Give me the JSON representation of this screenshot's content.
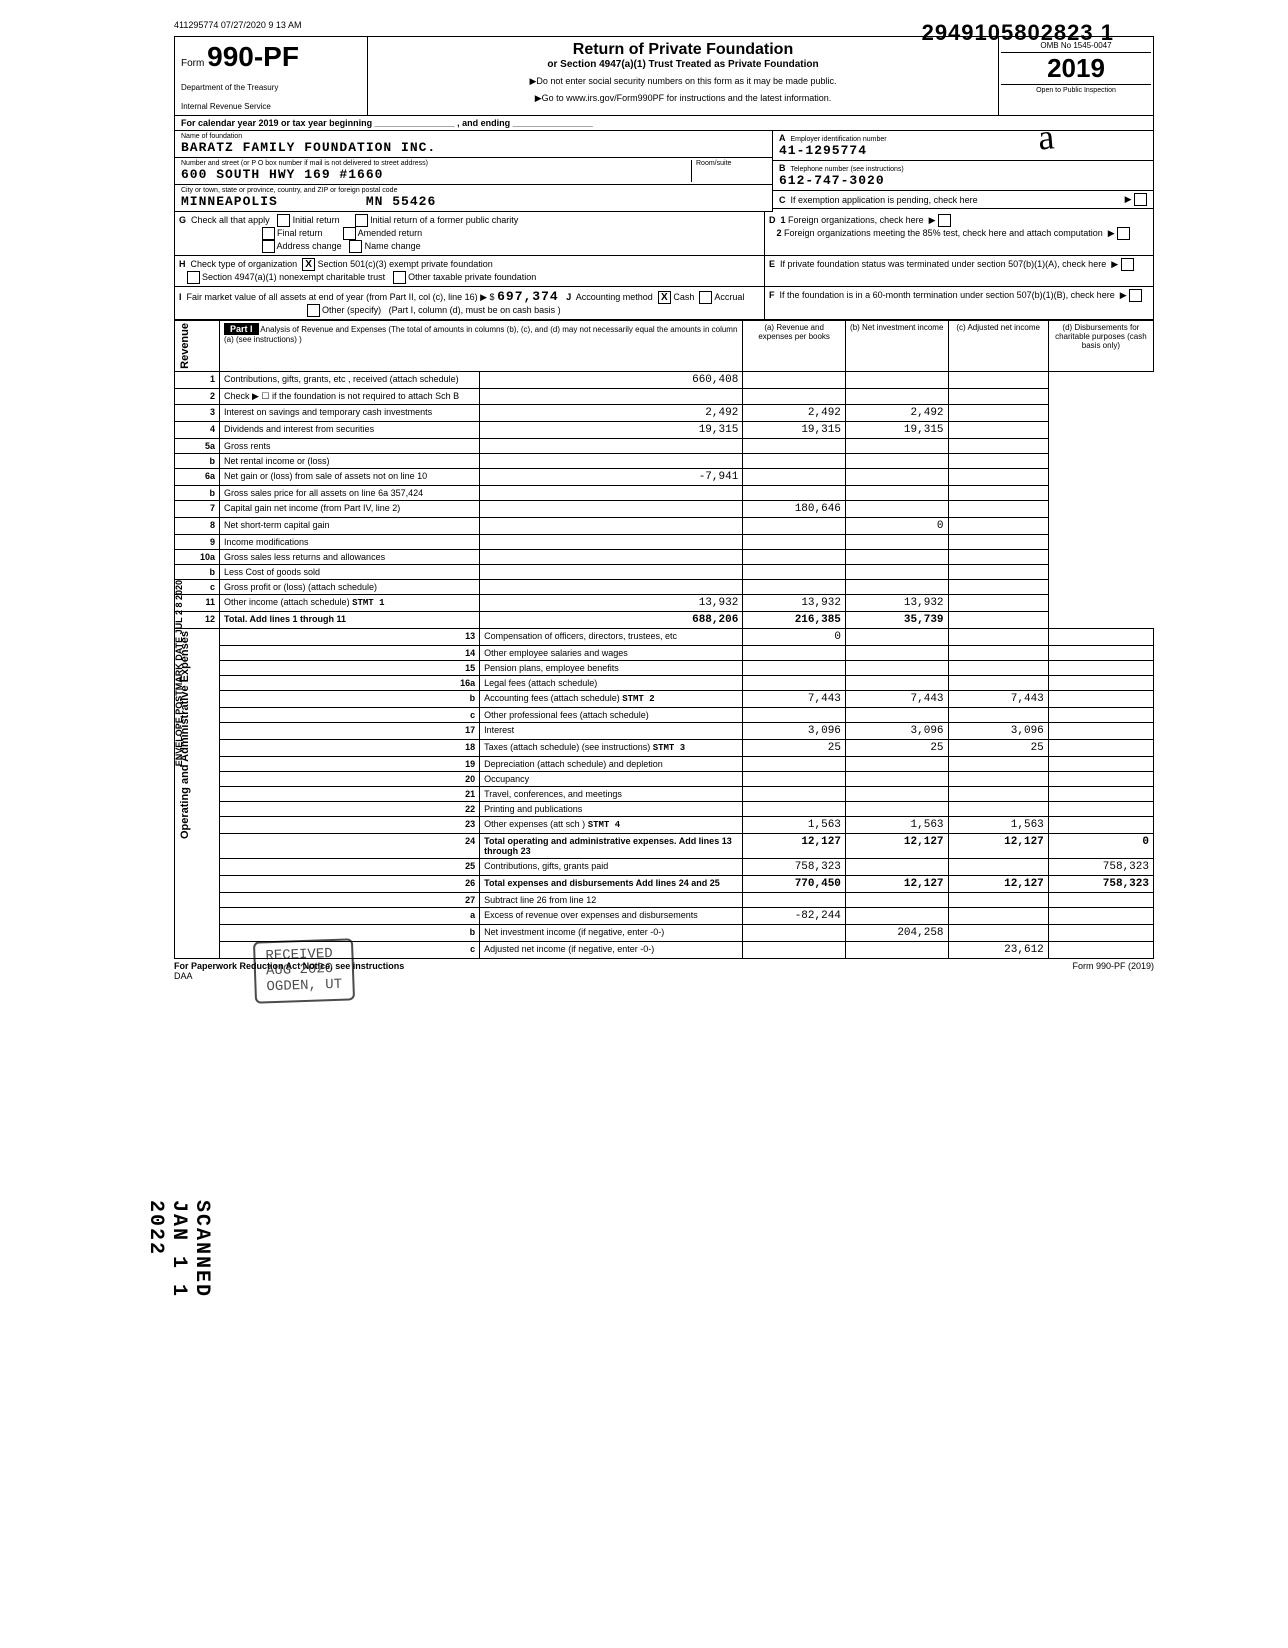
{
  "meta": {
    "top_stamp": "411295774 07/27/2020 9 13 AM",
    "doc_number": "2949105802823 1",
    "side_scanned": "SCANNED JAN 1 1 2022",
    "side_postmark": "ENVELOPE POSTMARK DATE JUL 2 8 2020"
  },
  "header": {
    "form_word": "Form",
    "form_number": "990-PF",
    "dept1": "Department of the Treasury",
    "dept2": "Internal Revenue Service",
    "title": "Return of Private Foundation",
    "subtitle": "or Section 4947(a)(1) Trust Treated as Private Foundation",
    "note1": "▶Do not enter social security numbers on this form as it may be made public.",
    "note2": "▶Go to www.irs.gov/Form990PF for instructions and the latest information.",
    "omb": "OMB No 1545-0047",
    "year": "2019",
    "inspection": "Open to Public Inspection",
    "calendar": "For calendar year 2019 or tax year beginning ________________ , and ending ________________"
  },
  "identity": {
    "name_label": "Name of foundation",
    "name": "BARATZ FAMILY FOUNDATION INC.",
    "addr_label": "Number and street (or P O box number if mail is not delivered to street address)",
    "room_label": "Room/suite",
    "address": "600 SOUTH HWY 169 #1660",
    "city_label": "City or town, state or province, country, and ZIP or foreign postal code",
    "city": "MINNEAPOLIS",
    "state_zip": "MN   55426",
    "ein_letter": "A",
    "ein_label": "Employer identification number",
    "ein": "41-1295774",
    "phone_letter": "B",
    "phone_label": "Telephone number (see instructions)",
    "phone": "612-747-3020",
    "c_label": "If exemption application is pending, check here",
    "d1_label": "Foreign organizations, check here",
    "d2_label": "Foreign organizations meeting the 85% test, check here and attach computation",
    "e_label": "If private foundation status was terminated under section 507(b)(1)(A), check here",
    "f_label": "If the foundation is in a 60-month termination under section 507(b)(1)(B), check here"
  },
  "g": {
    "label": "Check all that apply",
    "opts": [
      "Initial return",
      "Final return",
      "Address change",
      "Initial return of a former public charity",
      "Amended return",
      "Name change"
    ]
  },
  "h": {
    "label": "Check type of organization",
    "opt1": "Section 501(c)(3) exempt private foundation",
    "opt2": "Section 4947(a)(1) nonexempt charitable trust",
    "opt3": "Other taxable private foundation",
    "checked": "X"
  },
  "i": {
    "label": "Fair market value of all assets at end of year (from Part II, col (c), line 16) ▶  $",
    "value": "697,374",
    "j_label": "Accounting method",
    "cash": "Cash",
    "accrual": "Accrual",
    "other": "Other (specify)",
    "cash_x": "X",
    "note": "(Part I, column (d), must be on cash basis )"
  },
  "part1": {
    "label": "Part I",
    "desc": "Analysis of Revenue and Expenses (The total of amounts in columns (b), (c), and (d) may not necessarily equal the amounts in column (a) (see instructions) )",
    "col_a": "(a) Revenue and expenses per books",
    "col_b": "(b) Net investment income",
    "col_c": "(c) Adjusted net income",
    "col_d": "(d) Disbursements for charitable purposes (cash basis only)"
  },
  "side_labels": {
    "revenue": "Revenue",
    "expenses": "Operating and Administrative Expenses"
  },
  "lines": [
    {
      "n": "1",
      "d": "Contributions, gifts, grants, etc , received (attach schedule)",
      "a": "660,408",
      "b": "",
      "c": "",
      "dd": ""
    },
    {
      "n": "2",
      "d": "Check ▶  ☐  if the foundation is not required to attach Sch B",
      "a": "",
      "b": "",
      "c": "",
      "dd": ""
    },
    {
      "n": "3",
      "d": "Interest on savings and temporary cash investments",
      "a": "2,492",
      "b": "2,492",
      "c": "2,492",
      "dd": ""
    },
    {
      "n": "4",
      "d": "Dividends and interest from securities",
      "a": "19,315",
      "b": "19,315",
      "c": "19,315",
      "dd": ""
    },
    {
      "n": "5a",
      "d": "Gross rents",
      "a": "",
      "b": "",
      "c": "",
      "dd": ""
    },
    {
      "n": "b",
      "d": "Net rental income or (loss)",
      "a": "",
      "b": "",
      "c": "",
      "dd": ""
    },
    {
      "n": "6a",
      "d": "Net gain or (loss) from sale of assets not on line 10",
      "a": "-7,941",
      "b": "",
      "c": "",
      "dd": ""
    },
    {
      "n": "b",
      "d": "Gross sales price for all assets on line 6a           357,424",
      "a": "",
      "b": "",
      "c": "",
      "dd": ""
    },
    {
      "n": "7",
      "d": "Capital gain net income (from Part IV, line 2)",
      "a": "",
      "b": "180,646",
      "c": "",
      "dd": ""
    },
    {
      "n": "8",
      "d": "Net short-term capital gain",
      "a": "",
      "b": "",
      "c": "0",
      "dd": ""
    },
    {
      "n": "9",
      "d": "Income modifications",
      "a": "",
      "b": "",
      "c": "",
      "dd": ""
    },
    {
      "n": "10a",
      "d": "Gross sales less returns and allowances",
      "a": "",
      "b": "",
      "c": "",
      "dd": ""
    },
    {
      "n": "b",
      "d": "Less Cost of goods sold",
      "a": "",
      "b": "",
      "c": "",
      "dd": ""
    },
    {
      "n": "c",
      "d": "Gross profit or (loss) (attach schedule)",
      "a": "",
      "b": "",
      "c": "",
      "dd": ""
    },
    {
      "n": "11",
      "d": "Other income (attach schedule)        STMT 1",
      "a": "13,932",
      "b": "13,932",
      "c": "13,932",
      "dd": ""
    },
    {
      "n": "12",
      "d": "Total. Add lines 1 through 11",
      "a": "688,206",
      "b": "216,385",
      "c": "35,739",
      "dd": ""
    },
    {
      "n": "13",
      "d": "Compensation of officers, directors, trustees, etc",
      "a": "0",
      "b": "",
      "c": "",
      "dd": ""
    },
    {
      "n": "14",
      "d": "Other employee salaries and wages",
      "a": "",
      "b": "",
      "c": "",
      "dd": ""
    },
    {
      "n": "15",
      "d": "Pension plans, employee benefits",
      "a": "",
      "b": "",
      "c": "",
      "dd": ""
    },
    {
      "n": "16a",
      "d": "Legal fees (attach schedule)",
      "a": "",
      "b": "",
      "c": "",
      "dd": ""
    },
    {
      "n": "b",
      "d": "Accounting fees (attach schedule)     STMT 2",
      "a": "7,443",
      "b": "7,443",
      "c": "7,443",
      "dd": ""
    },
    {
      "n": "c",
      "d": "Other professional fees (attach schedule)",
      "a": "",
      "b": "",
      "c": "",
      "dd": ""
    },
    {
      "n": "17",
      "d": "Interest",
      "a": "3,096",
      "b": "3,096",
      "c": "3,096",
      "dd": ""
    },
    {
      "n": "18",
      "d": "Taxes (attach schedule) (see instructions)   STMT 3",
      "a": "25",
      "b": "25",
      "c": "25",
      "dd": ""
    },
    {
      "n": "19",
      "d": "Depreciation (attach schedule) and depletion",
      "a": "",
      "b": "",
      "c": "",
      "dd": ""
    },
    {
      "n": "20",
      "d": "Occupancy",
      "a": "",
      "b": "",
      "c": "",
      "dd": ""
    },
    {
      "n": "21",
      "d": "Travel, conferences, and meetings",
      "a": "",
      "b": "",
      "c": "",
      "dd": ""
    },
    {
      "n": "22",
      "d": "Printing and publications",
      "a": "",
      "b": "",
      "c": "",
      "dd": ""
    },
    {
      "n": "23",
      "d": "Other expenses (att sch )             STMT 4",
      "a": "1,563",
      "b": "1,563",
      "c": "1,563",
      "dd": ""
    },
    {
      "n": "24",
      "d": "Total operating and administrative expenses. Add lines 13 through 23",
      "a": "12,127",
      "b": "12,127",
      "c": "12,127",
      "dd": "0"
    },
    {
      "n": "25",
      "d": "Contributions, gifts, grants paid",
      "a": "758,323",
      "b": "",
      "c": "",
      "dd": "758,323"
    },
    {
      "n": "26",
      "d": "Total expenses and disbursements Add lines 24 and 25",
      "a": "770,450",
      "b": "12,127",
      "c": "12,127",
      "dd": "758,323"
    },
    {
      "n": "27",
      "d": "Subtract line 26 from line 12",
      "a": "",
      "b": "",
      "c": "",
      "dd": ""
    },
    {
      "n": "a",
      "d": "Excess of revenue over expenses and disbursements",
      "a": "-82,244",
      "b": "",
      "c": "",
      "dd": ""
    },
    {
      "n": "b",
      "d": "Net investment income (if negative, enter -0-)",
      "a": "",
      "b": "204,258",
      "c": "",
      "dd": ""
    },
    {
      "n": "c",
      "d": "Adjusted net income (if negative, enter -0-)",
      "a": "",
      "b": "",
      "c": "23,612",
      "dd": ""
    }
  ],
  "footer": {
    "left": "For Paperwork Reduction Act Notice, see instructions",
    "daa": "DAA",
    "right": "Form 990-PF (2019)"
  },
  "stamp": {
    "l1": "RECEIVED",
    "l2": "AUG   2020",
    "l3": "OGDEN, UT"
  }
}
